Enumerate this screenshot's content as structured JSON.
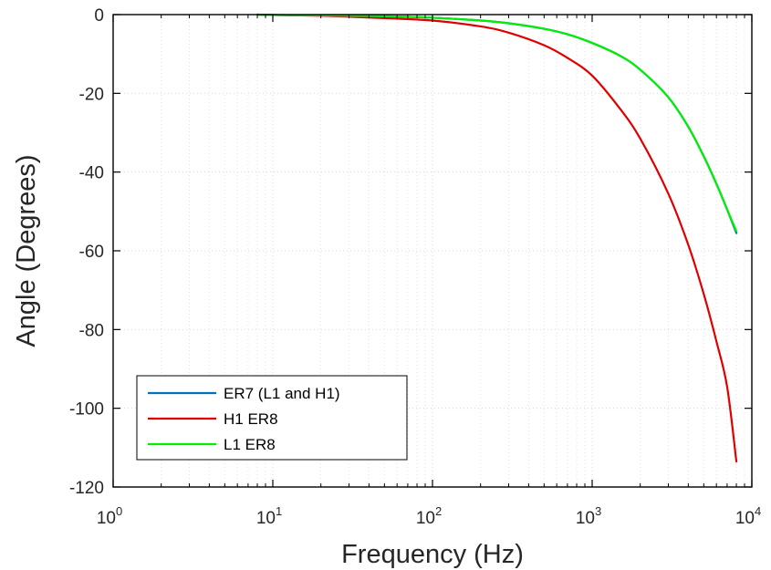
{
  "chart_data": {
    "type": "line",
    "title": "",
    "xlabel": "Frequency (Hz)",
    "ylabel": "Angle (Degrees)",
    "xscale": "log",
    "xlim": [
      1,
      10000
    ],
    "ylim": [
      -120,
      0
    ],
    "grid": true,
    "minor_grid": true,
    "legend_position": "bottom-left",
    "x_ticks": [
      {
        "base": "10",
        "exp": "0",
        "value": 1
      },
      {
        "base": "10",
        "exp": "1",
        "value": 10
      },
      {
        "base": "10",
        "exp": "2",
        "value": 100
      },
      {
        "base": "10",
        "exp": "3",
        "value": 1000
      },
      {
        "base": "10",
        "exp": "4",
        "value": 10000
      }
    ],
    "y_ticks": [
      {
        "label": "0",
        "value": 0
      },
      {
        "label": "-20",
        "value": -20
      },
      {
        "label": "-40",
        "value": -40
      },
      {
        "label": "-60",
        "value": -60
      },
      {
        "label": "-80",
        "value": -80
      },
      {
        "label": "-100",
        "value": -100
      },
      {
        "label": "-120",
        "value": -120
      }
    ],
    "x": [
      8,
      10,
      20,
      50,
      100,
      200,
      300,
      500,
      700,
      1000,
      1500,
      2000,
      3000,
      4000,
      5000,
      6000,
      7000,
      8000
    ],
    "series": [
      {
        "name": "ER7 (L1 and H1)",
        "color": "#0072BD",
        "values": [
          0,
          -0.1,
          -0.2,
          -0.4,
          -0.8,
          -1.5,
          -2.2,
          -3.6,
          -5.0,
          -7.2,
          -10.5,
          -14.0,
          -21.0,
          -28.5,
          -36.0,
          -43.0,
          -49.5,
          -55.5
        ]
      },
      {
        "name": "H1 ER8",
        "color": "#E00000",
        "values": [
          0,
          -0.1,
          -0.3,
          -0.9,
          -1.5,
          -3.0,
          -4.6,
          -7.8,
          -11.0,
          -15.5,
          -24.0,
          -31.5,
          -45.5,
          -58.5,
          -71.0,
          -83.0,
          -94.5,
          -113.5
        ]
      },
      {
        "name": "L1 ER8",
        "color": "#00EE00",
        "values": [
          0,
          -0.1,
          -0.2,
          -0.4,
          -0.8,
          -1.5,
          -2.2,
          -3.6,
          -5.0,
          -7.2,
          -10.5,
          -14.0,
          -21.0,
          -28.5,
          -36.0,
          -43.0,
          -49.5,
          -55.0
        ]
      }
    ]
  }
}
